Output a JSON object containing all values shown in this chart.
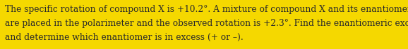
{
  "text_lines": [
    "The specific rotation of compound X is +10.2°. A mixture of compound X and its enantiomer",
    "are placed in the polarimeter and the observed rotation is +2.3°. Find the enantiomeric excess",
    "and determine which enantiomer is in excess (+ or –)."
  ],
  "background_color": "#f5d800",
  "text_color": "#2a2a2a",
  "font_size": 8.8,
  "fig_width": 5.78,
  "fig_height": 0.7,
  "dpi": 100
}
